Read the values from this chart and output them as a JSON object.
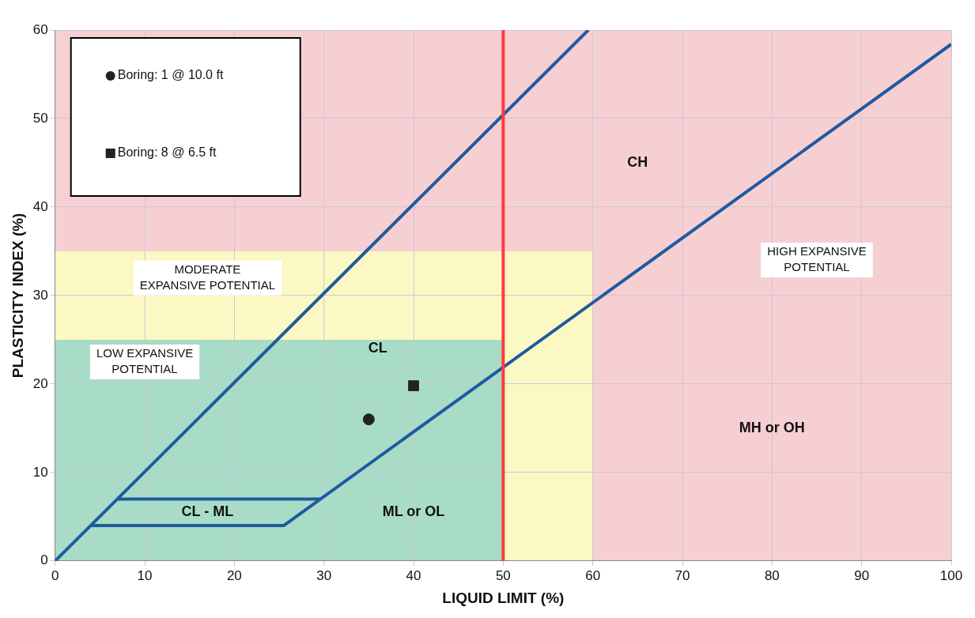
{
  "chart_data": {
    "type": "scatter",
    "xlabel": "LIQUID LIMIT (%)",
    "ylabel": "PLASTICITY INDEX (%)",
    "xlim": [
      0,
      100
    ],
    "ylim": [
      0,
      60
    ],
    "xticks": [
      0,
      10,
      20,
      30,
      40,
      50,
      60,
      70,
      80,
      90,
      100
    ],
    "yticks": [
      0,
      10,
      20,
      30,
      40,
      50,
      60
    ],
    "grid": true,
    "legend": "top left",
    "series": [
      {
        "type": "line",
        "color": "#1f5aa0",
        "x": [
          0,
          59.5
        ],
        "values": [
          0,
          60
        ],
        "marker": "none"
      },
      {
        "type": "line",
        "color": "#1f5aa0",
        "x": [
          4,
          25.5,
          100
        ],
        "values": [
          4,
          4,
          58.4
        ],
        "marker": "none"
      },
      {
        "type": "line",
        "color": "#1f5aa0",
        "x": [
          7,
          29.6
        ],
        "values": [
          7,
          7
        ],
        "marker": "none"
      },
      {
        "name": "Boring: 1 @ 10.0 ft",
        "color": "#222222",
        "x": [
          35
        ],
        "values": [
          16
        ],
        "marker": "circle"
      },
      {
        "name": "Boring: 8 @ 6.5 ft",
        "color": "#222222",
        "x": [
          40
        ],
        "values": [
          19.8
        ],
        "marker": "square"
      }
    ],
    "ref_lines": [
      {
        "axis": "x",
        "value": 50,
        "color": "#ff3b3b"
      }
    ],
    "bands": [
      {
        "axis": "y",
        "from": 0,
        "to": 25,
        "color": "#a8dcc6",
        "label": "LOW EXPANSIVE\nPOTENTIAL"
      },
      {
        "axis": "y",
        "from": 25,
        "to": 35,
        "color": "#fbf8c4",
        "label": "MODERATE\nEXPANSIVE POTENTIAL"
      },
      {
        "axis": "x",
        "from": 50,
        "to": 60,
        "color": "#fbf8c4"
      },
      {
        "axis": "y",
        "from": 35,
        "to": 60,
        "color": "#f6cfd3"
      },
      {
        "axis": "x",
        "from": 60,
        "to": 100,
        "color": "#f6cfd3",
        "label": "HIGH EXPANSIVE\nPOTENTIAL"
      }
    ],
    "annotations": [
      "CH",
      "CL",
      "CL - ML",
      "ML or OL",
      "MH or OH"
    ]
  }
}
